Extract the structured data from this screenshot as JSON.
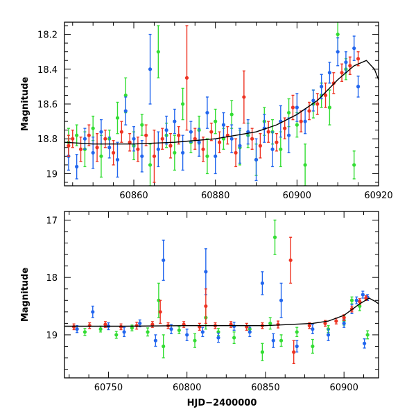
{
  "chart_data": [
    {
      "type": "scatter",
      "panel": "top",
      "title": "",
      "ylabel": "Magnitude",
      "xlabel": "",
      "xlim": [
        60843,
        60920
      ],
      "ylim": [
        19.07,
        18.13
      ],
      "y_inverted": true,
      "xticks": [
        60860,
        60880,
        60900,
        60920
      ],
      "yticks": [
        18.2,
        18.4,
        18.6,
        18.8,
        19
      ],
      "ytick_labels": [
        "18.2",
        "18.4",
        "18.6",
        "18.8",
        "19"
      ],
      "show_x_tick_labels": true,
      "series": [
        {
          "color": "#33dd33",
          "points": [
            [
              60844,
              18.82,
              0.08
            ],
            [
              60846,
              18.78,
              0.06
            ],
            [
              60848,
              18.86,
              0.1
            ],
            [
              60850,
              18.74,
              0.07
            ],
            [
              60852,
              18.9,
              0.12
            ],
            [
              60854,
              18.8,
              0.05
            ],
            [
              60856,
              18.68,
              0.09
            ],
            [
              60858,
              18.55,
              0.1
            ],
            [
              60860,
              18.84,
              0.08
            ],
            [
              60862,
              18.72,
              0.06
            ],
            [
              60864,
              18.95,
              0.12
            ],
            [
              60866,
              18.3,
              0.15
            ],
            [
              60868,
              18.78,
              0.07
            ],
            [
              60870,
              18.88,
              0.1
            ],
            [
              60872,
              18.6,
              0.09
            ],
            [
              60874,
              18.82,
              0.06
            ],
            [
              60876,
              18.75,
              0.08
            ],
            [
              60878,
              18.9,
              0.1
            ],
            [
              60880,
              18.7,
              0.07
            ],
            [
              60882,
              18.8,
              0.06
            ],
            [
              60884,
              18.66,
              0.08
            ],
            [
              60886,
              18.85,
              0.1
            ],
            [
              60888,
              18.78,
              0.07
            ],
            [
              60890,
              18.92,
              0.09
            ],
            [
              60892,
              18.7,
              0.08
            ],
            [
              60894,
              18.76,
              0.07
            ],
            [
              60896,
              18.86,
              0.1
            ],
            [
              60898,
              18.65,
              0.08
            ],
            [
              60900,
              18.72,
              0.07
            ],
            [
              60902,
              18.95,
              0.12
            ],
            [
              60904,
              18.6,
              0.08
            ],
            [
              60906,
              18.55,
              0.07
            ],
            [
              60908,
              18.62,
              0.1
            ],
            [
              60910,
              18.2,
              0.1
            ],
            [
              60912,
              18.4,
              0.06
            ],
            [
              60914,
              18.95,
              0.08
            ]
          ]
        },
        {
          "color": "#2266ee",
          "points": [
            [
              60844,
              18.9,
              0.08
            ],
            [
              60846,
              18.96,
              0.07
            ],
            [
              60848,
              18.8,
              0.06
            ],
            [
              60850,
              18.88,
              0.09
            ],
            [
              60852,
              18.76,
              0.07
            ],
            [
              60854,
              18.85,
              0.06
            ],
            [
              60856,
              18.92,
              0.1
            ],
            [
              60858,
              18.64,
              0.08
            ],
            [
              60860,
              18.8,
              0.07
            ],
            [
              60862,
              18.9,
              0.09
            ],
            [
              60864,
              18.4,
              0.2
            ],
            [
              60866,
              18.86,
              0.1
            ],
            [
              60868,
              18.75,
              0.08
            ],
            [
              60870,
              18.7,
              0.07
            ],
            [
              60872,
              18.88,
              0.1
            ],
            [
              60874,
              18.76,
              0.06
            ],
            [
              60876,
              18.82,
              0.08
            ],
            [
              60878,
              18.65,
              0.09
            ],
            [
              60880,
              18.9,
              0.1
            ],
            [
              60882,
              18.72,
              0.07
            ],
            [
              60884,
              18.8,
              0.08
            ],
            [
              60886,
              18.84,
              0.1
            ],
            [
              60888,
              18.76,
              0.07
            ],
            [
              60890,
              18.92,
              0.12
            ],
            [
              60892,
              18.74,
              0.08
            ],
            [
              60894,
              18.86,
              0.1
            ],
            [
              60896,
              18.7,
              0.09
            ],
            [
              60898,
              18.78,
              0.1
            ],
            [
              60900,
              18.62,
              0.08
            ],
            [
              60902,
              18.7,
              0.07
            ],
            [
              60904,
              18.58,
              0.06
            ],
            [
              60906,
              18.5,
              0.07
            ],
            [
              60908,
              18.42,
              0.06
            ],
            [
              60910,
              18.3,
              0.08
            ],
            [
              60912,
              18.36,
              0.06
            ],
            [
              60914,
              18.28,
              0.07
            ],
            [
              60915,
              18.5,
              0.06
            ]
          ]
        },
        {
          "color": "#ee3322",
          "points": [
            [
              60844,
              18.84,
              0.06
            ],
            [
              60845,
              18.8,
              0.05
            ],
            [
              60847,
              18.86,
              0.07
            ],
            [
              60849,
              18.78,
              0.06
            ],
            [
              60851,
              18.85,
              0.08
            ],
            [
              60853,
              18.8,
              0.05
            ],
            [
              60855,
              18.88,
              0.07
            ],
            [
              60857,
              18.76,
              0.06
            ],
            [
              60859,
              18.82,
              0.05
            ],
            [
              60861,
              18.86,
              0.07
            ],
            [
              60863,
              18.78,
              0.06
            ],
            [
              60865,
              18.9,
              0.15
            ],
            [
              60867,
              18.8,
              0.06
            ],
            [
              60869,
              18.84,
              0.07
            ],
            [
              60871,
              18.78,
              0.05
            ],
            [
              60873,
              18.45,
              0.3
            ],
            [
              60875,
              18.8,
              0.06
            ],
            [
              60877,
              18.86,
              0.07
            ],
            [
              60879,
              18.76,
              0.05
            ],
            [
              60881,
              18.82,
              0.06
            ],
            [
              60883,
              18.78,
              0.05
            ],
            [
              60885,
              18.88,
              0.08
            ],
            [
              60887,
              18.56,
              0.15
            ],
            [
              60889,
              18.8,
              0.06
            ],
            [
              60891,
              18.84,
              0.07
            ],
            [
              60893,
              18.76,
              0.06
            ],
            [
              60895,
              18.82,
              0.05
            ],
            [
              60897,
              18.74,
              0.06
            ],
            [
              60899,
              18.62,
              0.07
            ],
            [
              60901,
              18.7,
              0.06
            ],
            [
              60903,
              18.64,
              0.05
            ],
            [
              60905,
              18.6,
              0.06
            ],
            [
              60907,
              18.55,
              0.07
            ],
            [
              60909,
              18.48,
              0.06
            ],
            [
              60911,
              18.42,
              0.05
            ],
            [
              60913,
              18.38,
              0.05
            ],
            [
              60915,
              18.34,
              0.04
            ]
          ]
        }
      ],
      "model_curve": [
        [
          60843,
          18.82
        ],
        [
          60850,
          18.83
        ],
        [
          60860,
          18.83
        ],
        [
          60870,
          18.82
        ],
        [
          60880,
          18.8
        ],
        [
          60890,
          18.76
        ],
        [
          60895,
          18.72
        ],
        [
          60900,
          18.66
        ],
        [
          60905,
          18.58
        ],
        [
          60910,
          18.46
        ],
        [
          60914,
          18.38
        ],
        [
          60917,
          18.35
        ],
        [
          60919,
          18.4
        ],
        [
          60920,
          18.46
        ]
      ]
    },
    {
      "type": "scatter",
      "panel": "bottom",
      "title": "",
      "ylabel": "Magnitude",
      "xlabel": "HJD−2400000",
      "xlim": [
        60722,
        60922
      ],
      "ylim": [
        19.75,
        16.85
      ],
      "y_inverted": true,
      "xticks": [
        60750,
        60800,
        60850,
        60900
      ],
      "yticks": [
        17,
        18,
        19
      ],
      "ytick_labels": [
        "17",
        "18",
        "19"
      ],
      "show_x_tick_labels": true,
      "series": [
        {
          "color": "#33dd33",
          "points": [
            [
              60735,
              18.95,
              0.06
            ],
            [
              60745,
              18.9,
              0.05
            ],
            [
              60755,
              19.0,
              0.06
            ],
            [
              60765,
              18.88,
              0.05
            ],
            [
              60775,
              18.95,
              0.07
            ],
            [
              60782,
              18.4,
              0.3
            ],
            [
              60785,
              19.2,
              0.2
            ],
            [
              60795,
              18.92,
              0.06
            ],
            [
              60805,
              19.1,
              0.12
            ],
            [
              60812,
              18.7,
              0.2
            ],
            [
              60820,
              18.95,
              0.06
            ],
            [
              60830,
              19.05,
              0.1
            ],
            [
              60840,
              18.9,
              0.06
            ],
            [
              60848,
              19.3,
              0.15
            ],
            [
              60853,
              18.8,
              0.1
            ],
            [
              60856,
              17.3,
              0.3
            ],
            [
              60860,
              19.1,
              0.1
            ],
            [
              60870,
              18.95,
              0.08
            ],
            [
              60880,
              19.2,
              0.12
            ],
            [
              60890,
              18.9,
              0.06
            ],
            [
              60900,
              18.75,
              0.08
            ],
            [
              60905,
              18.4,
              0.06
            ],
            [
              60910,
              18.5,
              0.08
            ],
            [
              60915,
              19.0,
              0.07
            ]
          ]
        },
        {
          "color": "#2266ee",
          "points": [
            [
              60730,
              18.9,
              0.06
            ],
            [
              60740,
              18.6,
              0.1
            ],
            [
              60750,
              18.85,
              0.06
            ],
            [
              60760,
              18.95,
              0.08
            ],
            [
              60770,
              18.8,
              0.06
            ],
            [
              60780,
              19.1,
              0.1
            ],
            [
              60785,
              17.7,
              0.35
            ],
            [
              60790,
              18.9,
              0.08
            ],
            [
              60800,
              19.0,
              0.1
            ],
            [
              60810,
              18.95,
              0.08
            ],
            [
              60812,
              17.9,
              0.4
            ],
            [
              60820,
              19.05,
              0.08
            ],
            [
              60830,
              18.85,
              0.07
            ],
            [
              60840,
              18.95,
              0.08
            ],
            [
              60848,
              18.1,
              0.2
            ],
            [
              60855,
              19.1,
              0.12
            ],
            [
              60860,
              18.4,
              0.3
            ],
            [
              60870,
              19.2,
              0.1
            ],
            [
              60880,
              18.9,
              0.08
            ],
            [
              60890,
              19.0,
              0.1
            ],
            [
              60900,
              18.8,
              0.07
            ],
            [
              60905,
              18.55,
              0.08
            ],
            [
              60908,
              18.4,
              0.06
            ],
            [
              60912,
              18.3,
              0.06
            ],
            [
              60915,
              18.35,
              0.05
            ],
            [
              60913,
              19.15,
              0.08
            ]
          ]
        },
        {
          "color": "#ee3322",
          "points": [
            [
              60728,
              18.86,
              0.05
            ],
            [
              60738,
              18.84,
              0.05
            ],
            [
              60748,
              18.82,
              0.05
            ],
            [
              60758,
              18.86,
              0.05
            ],
            [
              60768,
              18.84,
              0.06
            ],
            [
              60778,
              18.82,
              0.05
            ],
            [
              60783,
              18.6,
              0.2
            ],
            [
              60788,
              18.84,
              0.05
            ],
            [
              60798,
              18.82,
              0.05
            ],
            [
              60808,
              18.86,
              0.06
            ],
            [
              60812,
              18.5,
              0.3
            ],
            [
              60818,
              18.84,
              0.05
            ],
            [
              60828,
              18.82,
              0.05
            ],
            [
              60838,
              18.86,
              0.06
            ],
            [
              60848,
              18.84,
              0.05
            ],
            [
              60858,
              18.82,
              0.06
            ],
            [
              60866,
              17.7,
              0.4
            ],
            [
              60868,
              19.3,
              0.2
            ],
            [
              60878,
              18.84,
              0.05
            ],
            [
              60888,
              18.8,
              0.05
            ],
            [
              60895,
              18.76,
              0.05
            ],
            [
              60900,
              18.7,
              0.05
            ],
            [
              60905,
              18.55,
              0.05
            ],
            [
              60910,
              18.42,
              0.05
            ],
            [
              60914,
              18.36,
              0.04
            ]
          ]
        }
      ],
      "model_curve": [
        [
          60722,
          18.85
        ],
        [
          60760,
          18.85
        ],
        [
          60800,
          18.84
        ],
        [
          60850,
          18.84
        ],
        [
          60880,
          18.8
        ],
        [
          60890,
          18.76
        ],
        [
          60900,
          18.66
        ],
        [
          60910,
          18.46
        ],
        [
          60916,
          18.36
        ],
        [
          60920,
          18.42
        ],
        [
          60922,
          18.46
        ]
      ]
    }
  ]
}
